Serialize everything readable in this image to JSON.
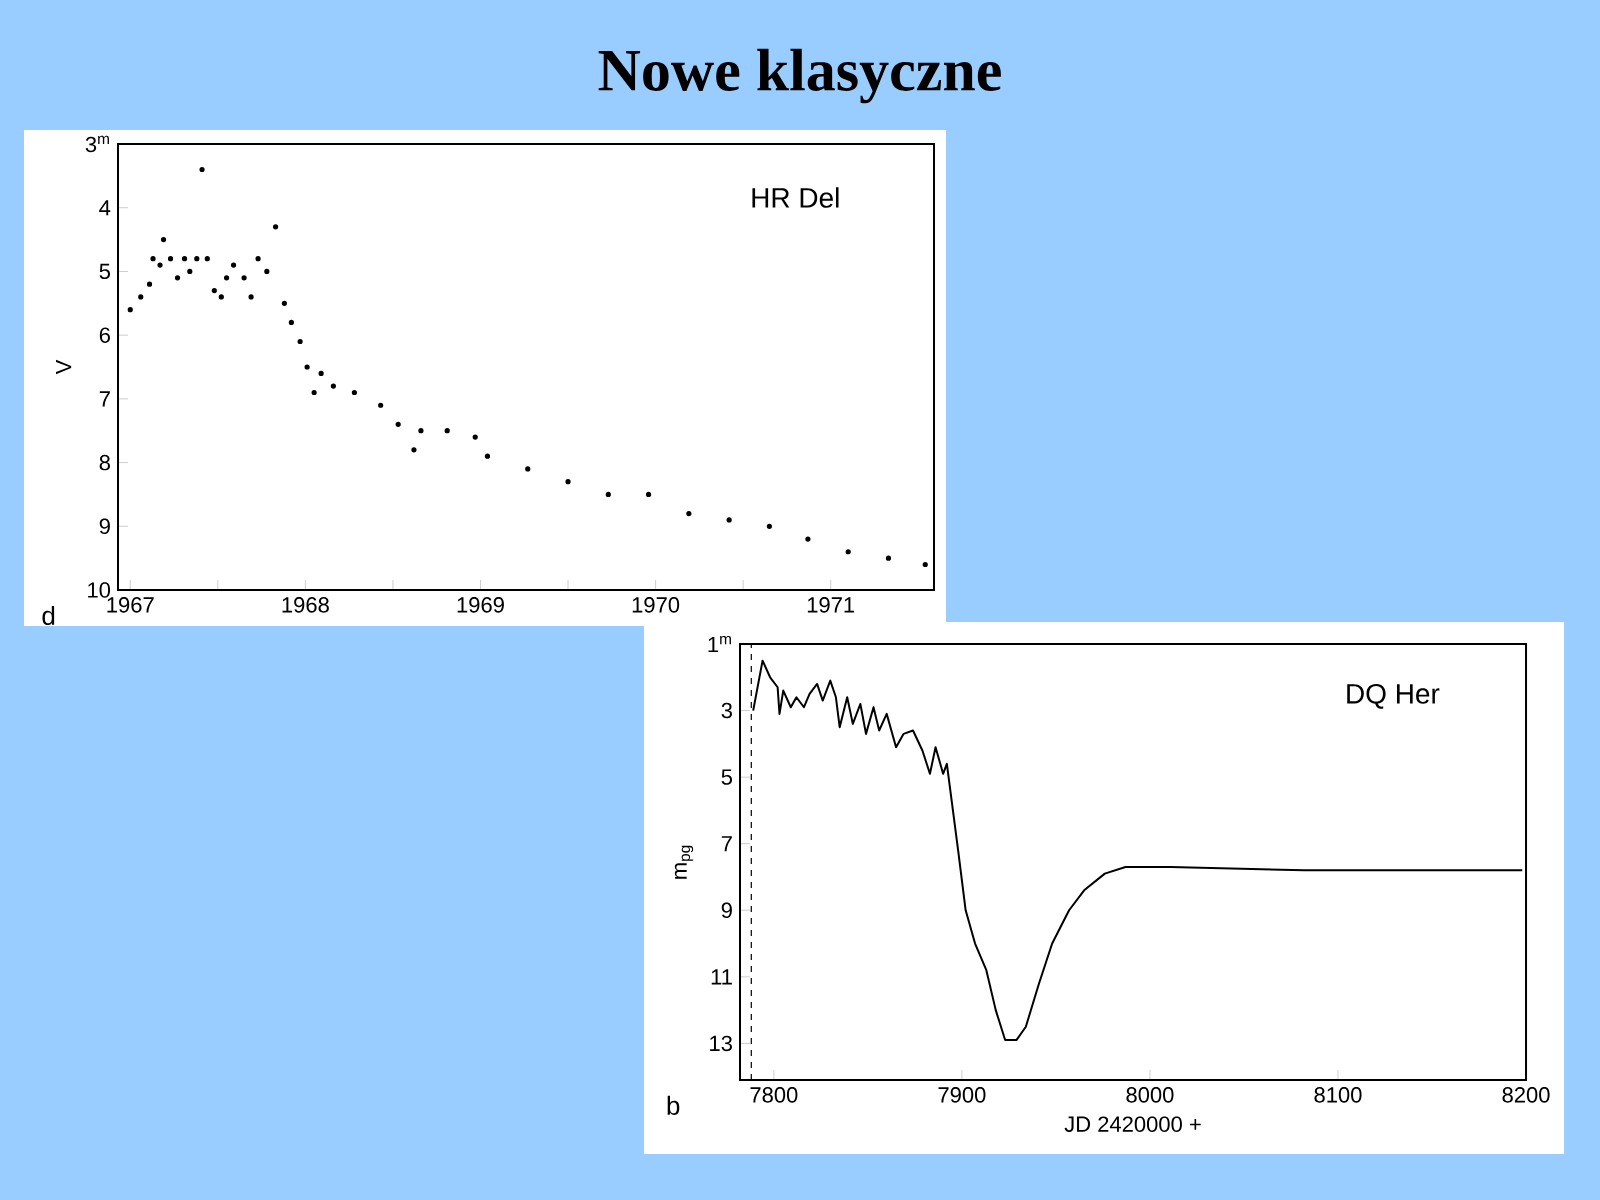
{
  "chart_data": [
    {
      "type": "scatter",
      "title": "Nowe klasyczne",
      "ylabel": "V",
      "marker": "circle",
      "color": "#000000",
      "grid": false,
      "annotations": [
        "HR Del",
        "d"
      ],
      "xlim": [
        1966.93,
        1971.59
      ],
      "ylim": [
        10,
        3
      ],
      "xticks": [
        1967,
        {
          "value": 1967.5,
          "label": null
        },
        1968,
        {
          "value": 1968.5,
          "label": null
        },
        1969,
        {
          "value": 1969.5,
          "label": null
        },
        1970,
        {
          "value": 1970.5,
          "label": null
        },
        1971
      ],
      "yticks": [
        {
          "value": 3,
          "label": "3$^{m}$"
        },
        4,
        5,
        6,
        7,
        8,
        9,
        10
      ],
      "x": [
        1967.0,
        1967.06,
        1967.11,
        1967.13,
        1967.17,
        1967.19,
        1967.23,
        1967.27,
        1967.31,
        1967.34,
        1967.38,
        1967.41,
        1967.44,
        1967.48,
        1967.52,
        1967.55,
        1967.59,
        1967.65,
        1967.69,
        1967.73,
        1967.78,
        1967.83,
        1967.88,
        1967.92,
        1967.97,
        1968.01,
        1968.05,
        1968.09,
        1968.16,
        1968.28,
        1968.43,
        1968.53,
        1968.62,
        1968.66,
        1968.81,
        1968.97,
        1969.04,
        1969.27,
        1969.5,
        1969.73,
        1969.96,
        1970.19,
        1970.42,
        1970.65,
        1970.87,
        1971.1,
        1971.33,
        1971.54
      ],
      "values": [
        5.6,
        5.4,
        5.2,
        4.8,
        4.9,
        4.5,
        4.8,
        5.1,
        4.8,
        5.0,
        4.8,
        3.4,
        4.8,
        5.3,
        5.4,
        5.1,
        4.9,
        5.1,
        5.4,
        4.8,
        5.0,
        4.3,
        5.5,
        5.8,
        6.1,
        6.5,
        6.9,
        6.6,
        6.8,
        6.9,
        7.1,
        7.4,
        7.8,
        7.5,
        7.5,
        7.6,
        7.9,
        8.1,
        8.3,
        8.5,
        8.5,
        8.8,
        8.9,
        9.0,
        9.2,
        9.4,
        9.5,
        9.6
      ]
    },
    {
      "type": "line",
      "xlabel": "JD 2420000 +",
      "ylabel": "m$_{pg}$",
      "marker": "none",
      "color": "#000000",
      "grid": false,
      "annotations": [
        "DQ Her",
        "b"
      ],
      "ref_lines": [
        {
          "axis": "x",
          "value": 7788,
          "line_style": "dashed",
          "color": "#000000"
        }
      ],
      "xlim": [
        7782,
        8200
      ],
      "ylim": [
        14.1,
        1
      ],
      "xticks": [
        7800,
        7900,
        8000,
        8100,
        8200
      ],
      "yticks": [
        {
          "value": 1,
          "label": "1$^{m}$"
        },
        3,
        5,
        7,
        9,
        11,
        13
      ],
      "x": [
        7789,
        7794,
        7798,
        7802,
        7803,
        7805,
        7809,
        7812,
        7816,
        7819,
        7823,
        7826,
        7830,
        7833,
        7835,
        7839,
        7842,
        7846,
        7849,
        7853,
        7856,
        7860,
        7865,
        7869,
        7874,
        7879,
        7883,
        7886,
        7890,
        7892,
        7895,
        7898,
        7902,
        7907,
        7913,
        7918,
        7923,
        7929,
        7934,
        7941,
        7948,
        7957,
        7965,
        7976,
        7987,
        8011,
        8082,
        8198
      ],
      "values": [
        3.0,
        1.5,
        2.0,
        2.3,
        3.1,
        2.4,
        2.9,
        2.6,
        2.9,
        2.5,
        2.2,
        2.7,
        2.1,
        2.6,
        3.5,
        2.6,
        3.4,
        2.8,
        3.7,
        2.9,
        3.6,
        3.1,
        4.1,
        3.7,
        3.6,
        4.2,
        4.9,
        4.1,
        4.9,
        4.6,
        5.9,
        7.2,
        9.0,
        10.0,
        10.8,
        12.0,
        12.9,
        12.9,
        12.5,
        11.2,
        10.0,
        9.0,
        8.4,
        7.9,
        7.7,
        7.7,
        7.8,
        7.8
      ]
    }
  ]
}
